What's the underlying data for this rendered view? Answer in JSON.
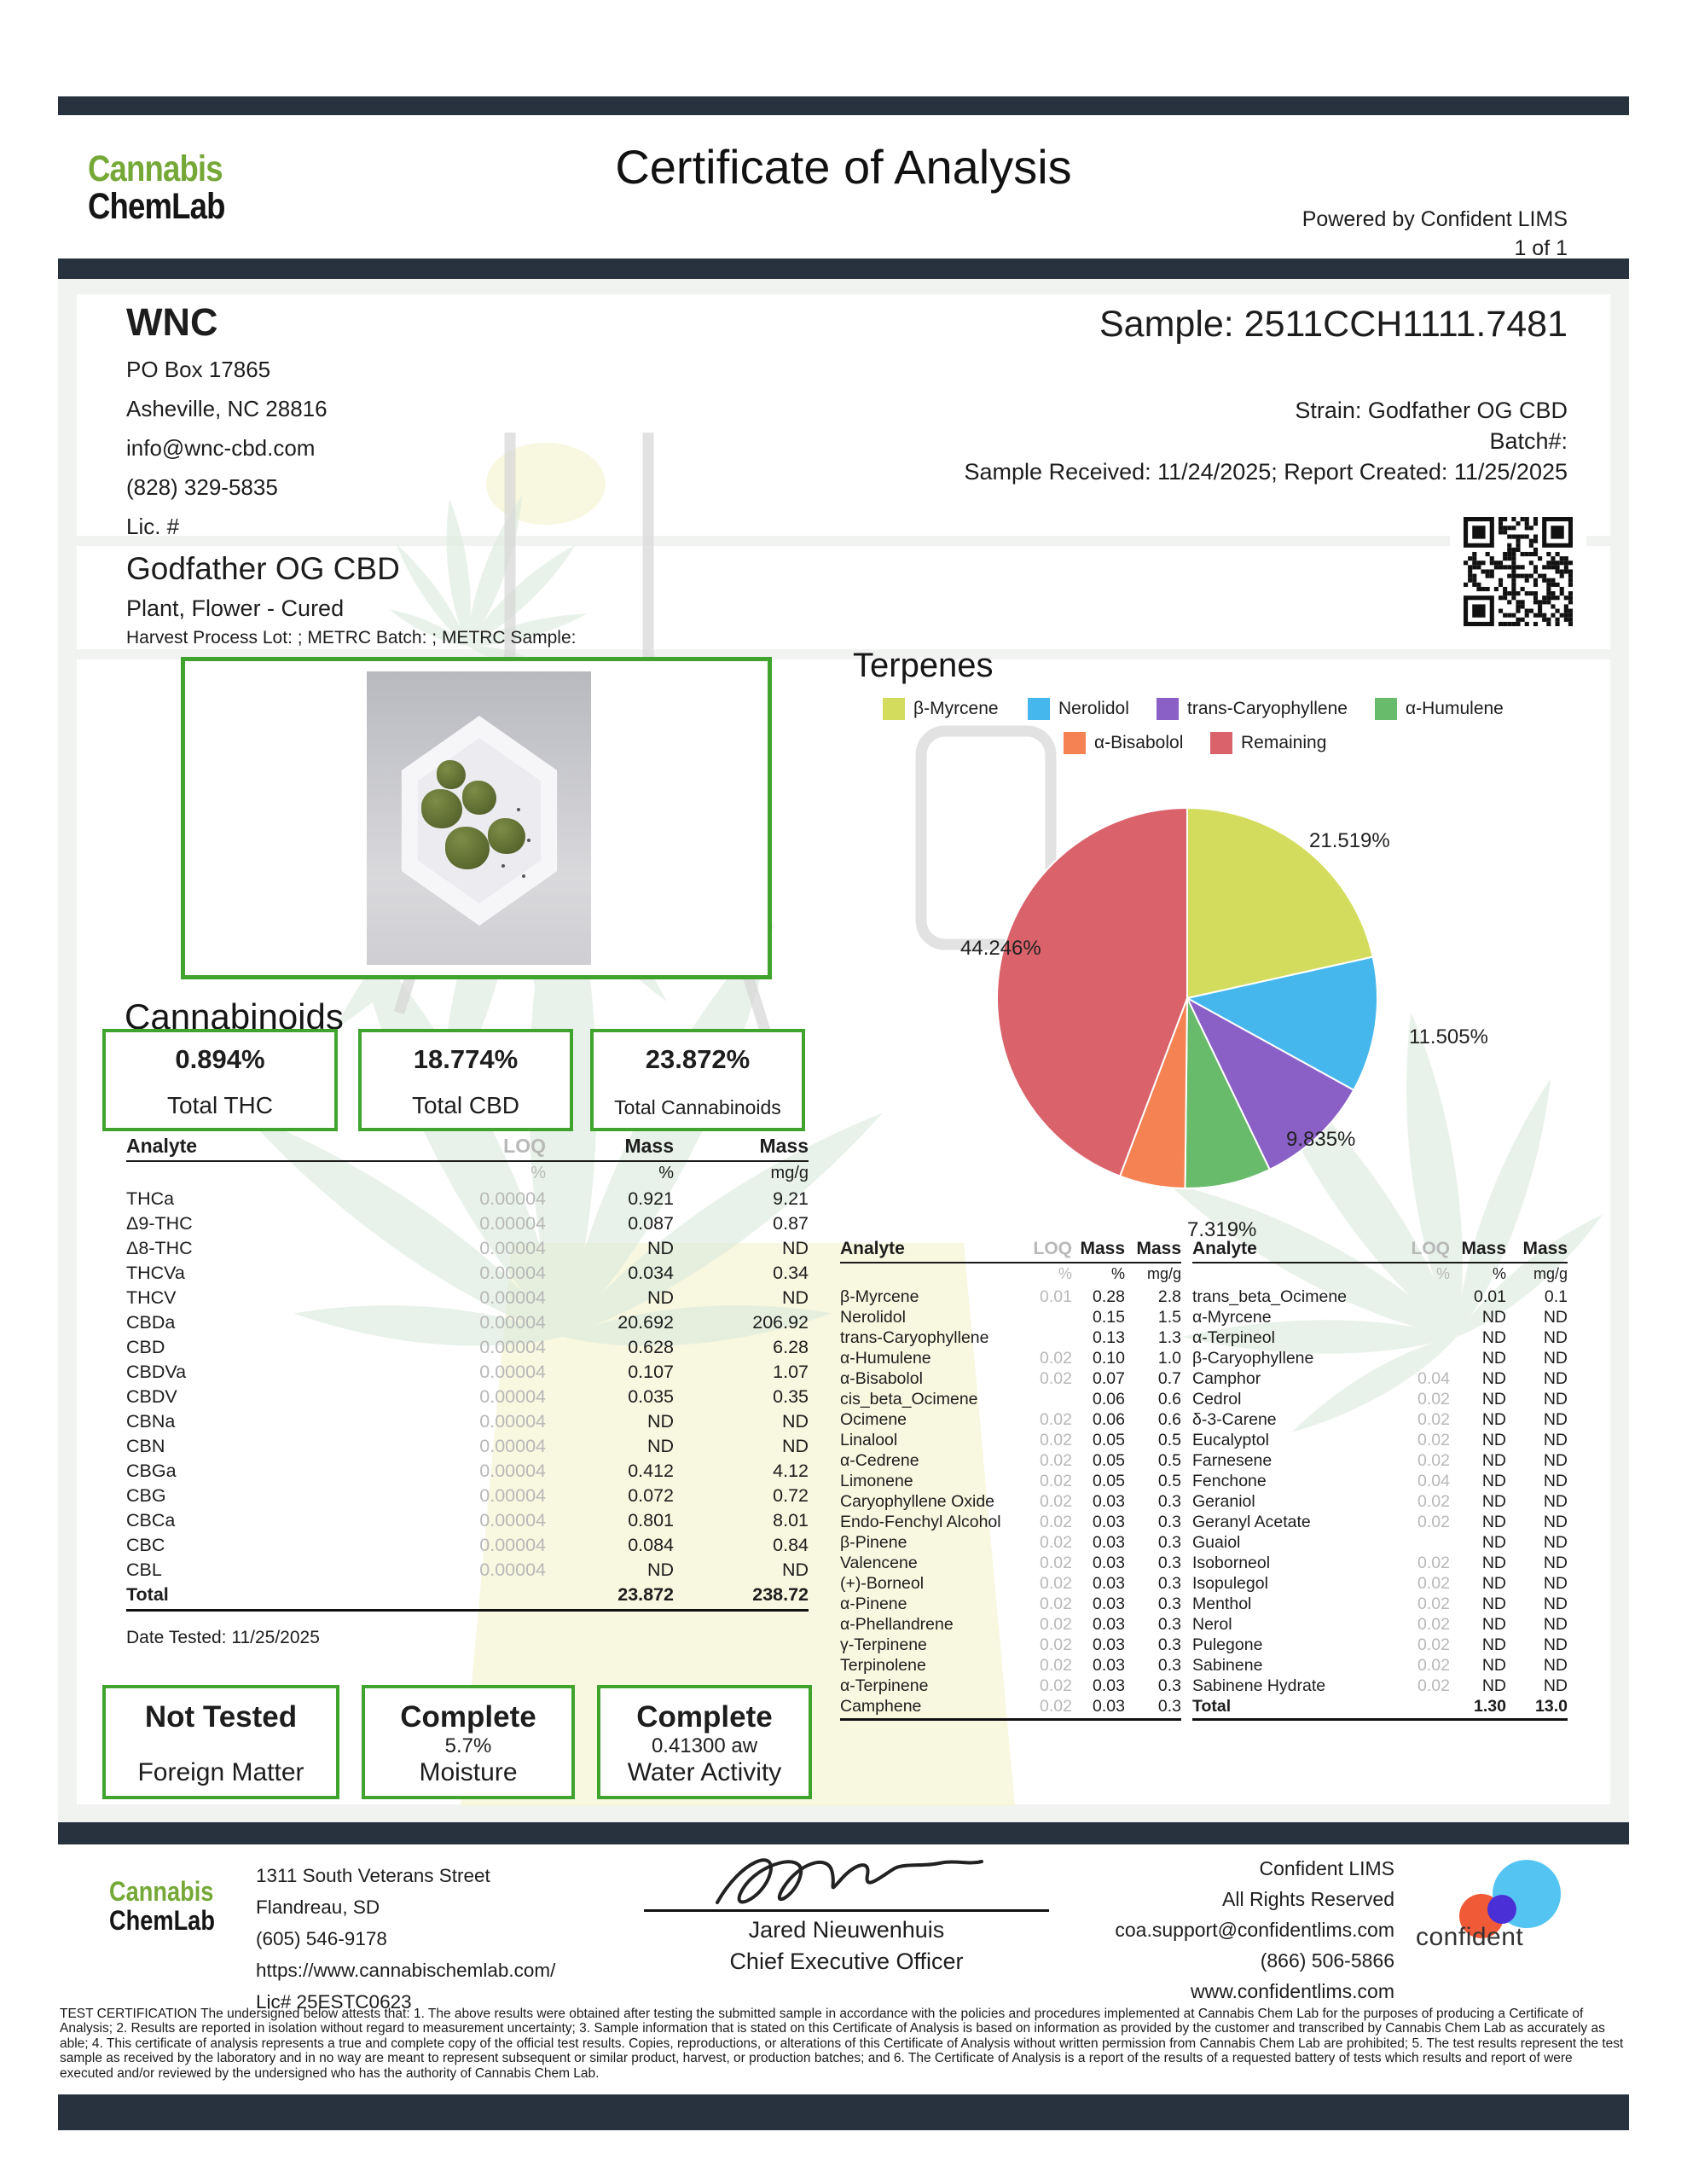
{
  "header": {
    "brand_top": "Cannabis",
    "brand_bottom": "ChemLab",
    "title": "Certificate of Analysis",
    "powered_by": "Powered by Confident LIMS",
    "page_num": "1 of 1"
  },
  "client": {
    "name": "WNC",
    "address1": "PO Box 17865",
    "address2": "Asheville, NC 28816",
    "email": "info@wnc-cbd.com",
    "phone": "(828) 329-5835",
    "license": "Lic. #"
  },
  "sample": {
    "heading": "Sample: 2511CCH1111.7481",
    "strain": "Strain: Godfather OG CBD",
    "batch": "Batch#:",
    "received": "Sample Received: 11/24/2025; Report Created: 11/25/2025"
  },
  "product": {
    "name": "Godfather OG CBD",
    "type": "Plant, Flower - Cured",
    "metrc": "Harvest Process Lot: ; METRC Batch: ; METRC Sample:"
  },
  "cannabinoids": {
    "heading": "Cannabinoids",
    "summary": [
      {
        "value": "0.894%",
        "label": "Total THC"
      },
      {
        "value": "18.774%",
        "label": "Total CBD"
      },
      {
        "value": "23.872%",
        "label": "Total Cannabinoids"
      }
    ],
    "columns": {
      "analyte": "Analyte",
      "loq": "LOQ",
      "mass1": "Mass",
      "mass2": "Mass"
    },
    "units": {
      "loq": "%",
      "mass1": "%",
      "mass2": "mg/g"
    },
    "rows": [
      {
        "analyte": "THCa",
        "loq": "0.00004",
        "pct": "0.921",
        "mgg": "9.21"
      },
      {
        "analyte": "Δ9-THC",
        "loq": "0.00004",
        "pct": "0.087",
        "mgg": "0.87"
      },
      {
        "analyte": "Δ8-THC",
        "loq": "0.00004",
        "pct": "ND",
        "mgg": "ND"
      },
      {
        "analyte": "THCVa",
        "loq": "0.00004",
        "pct": "0.034",
        "mgg": "0.34"
      },
      {
        "analyte": "THCV",
        "loq": "0.00004",
        "pct": "ND",
        "mgg": "ND"
      },
      {
        "analyte": "CBDa",
        "loq": "0.00004",
        "pct": "20.692",
        "mgg": "206.92"
      },
      {
        "analyte": "CBD",
        "loq": "0.00004",
        "pct": "0.628",
        "mgg": "6.28"
      },
      {
        "analyte": "CBDVa",
        "loq": "0.00004",
        "pct": "0.107",
        "mgg": "1.07"
      },
      {
        "analyte": "CBDV",
        "loq": "0.00004",
        "pct": "0.035",
        "mgg": "0.35"
      },
      {
        "analyte": "CBNa",
        "loq": "0.00004",
        "pct": "ND",
        "mgg": "ND"
      },
      {
        "analyte": "CBN",
        "loq": "0.00004",
        "pct": "ND",
        "mgg": "ND"
      },
      {
        "analyte": "CBGa",
        "loq": "0.00004",
        "pct": "0.412",
        "mgg": "4.12"
      },
      {
        "analyte": "CBG",
        "loq": "0.00004",
        "pct": "0.072",
        "mgg": "0.72"
      },
      {
        "analyte": "CBCa",
        "loq": "0.00004",
        "pct": "0.801",
        "mgg": "8.01"
      },
      {
        "analyte": "CBC",
        "loq": "0.00004",
        "pct": "0.084",
        "mgg": "0.84"
      },
      {
        "analyte": "CBL",
        "loq": "0.00004",
        "pct": "ND",
        "mgg": "ND"
      }
    ],
    "total": {
      "analyte": "Total",
      "loq": "",
      "pct": "23.872",
      "mgg": "238.72"
    },
    "date_tested": "Date Tested: 11/25/2025"
  },
  "status_boxes": [
    {
      "status": "Not Tested",
      "value": "",
      "label": "Foreign Matter"
    },
    {
      "status": "Complete",
      "value": "5.7%",
      "label": "Moisture"
    },
    {
      "status": "Complete",
      "value": "0.41300 aw",
      "label": "Water Activity"
    }
  ],
  "terpenes": {
    "heading": "Terpenes",
    "legend": [
      {
        "label": "β-Myrcene",
        "color": "#d3dc5d"
      },
      {
        "label": "Nerolidol",
        "color": "#45b7ec"
      },
      {
        "label": "trans-Caryophyllene",
        "color": "#8a60c7"
      },
      {
        "label": "α-Humulene",
        "color": "#68bb6a"
      },
      {
        "label": "α-Bisabolol",
        "color": "#f58253"
      },
      {
        "label": "Remaining",
        "color": "#d9626b"
      }
    ],
    "pie_labels": [
      "21.519%",
      "11.505%",
      "9.835%",
      "7.319%",
      "44.246%"
    ],
    "columns": {
      "analyte": "Analyte",
      "loq": "LOQ",
      "mass1": "Mass",
      "mass2": "Mass"
    },
    "units": {
      "loq": "%",
      "mass1": "%",
      "mass2": "mg/g"
    },
    "left_rows": [
      {
        "analyte": "β-Myrcene",
        "loq": "0.01",
        "pct": "0.28",
        "mgg": "2.8"
      },
      {
        "analyte": "Nerolidol",
        "loq": "",
        "pct": "0.15",
        "mgg": "1.5"
      },
      {
        "analyte": "trans-Caryophyllene",
        "loq": "",
        "pct": "0.13",
        "mgg": "1.3"
      },
      {
        "analyte": "α-Humulene",
        "loq": "0.02",
        "pct": "0.10",
        "mgg": "1.0"
      },
      {
        "analyte": "α-Bisabolol",
        "loq": "0.02",
        "pct": "0.07",
        "mgg": "0.7"
      },
      {
        "analyte": "cis_beta_Ocimene",
        "loq": "",
        "pct": "0.06",
        "mgg": "0.6"
      },
      {
        "analyte": "Ocimene",
        "loq": "0.02",
        "pct": "0.06",
        "mgg": "0.6"
      },
      {
        "analyte": "Linalool",
        "loq": "0.02",
        "pct": "0.05",
        "mgg": "0.5"
      },
      {
        "analyte": "α-Cedrene",
        "loq": "0.02",
        "pct": "0.05",
        "mgg": "0.5"
      },
      {
        "analyte": "Limonene",
        "loq": "0.02",
        "pct": "0.05",
        "mgg": "0.5"
      },
      {
        "analyte": "Caryophyllene Oxide",
        "loq": "0.02",
        "pct": "0.03",
        "mgg": "0.3"
      },
      {
        "analyte": "Endo-Fenchyl Alcohol",
        "loq": "0.02",
        "pct": "0.03",
        "mgg": "0.3"
      },
      {
        "analyte": "β-Pinene",
        "loq": "0.02",
        "pct": "0.03",
        "mgg": "0.3"
      },
      {
        "analyte": "Valencene",
        "loq": "0.02",
        "pct": "0.03",
        "mgg": "0.3"
      },
      {
        "analyte": "(+)-Borneol",
        "loq": "0.02",
        "pct": "0.03",
        "mgg": "0.3"
      },
      {
        "analyte": "α-Pinene",
        "loq": "0.02",
        "pct": "0.03",
        "mgg": "0.3"
      },
      {
        "analyte": "α-Phellandrene",
        "loq": "0.02",
        "pct": "0.03",
        "mgg": "0.3"
      },
      {
        "analyte": "γ-Terpinene",
        "loq": "0.02",
        "pct": "0.03",
        "mgg": "0.3"
      },
      {
        "analyte": "Terpinolene",
        "loq": "0.02",
        "pct": "0.03",
        "mgg": "0.3"
      },
      {
        "analyte": "α-Terpinene",
        "loq": "0.02",
        "pct": "0.03",
        "mgg": "0.3"
      },
      {
        "analyte": "Camphene",
        "loq": "0.02",
        "pct": "0.03",
        "mgg": "0.3"
      }
    ],
    "right_rows": [
      {
        "analyte": "trans_beta_Ocimene",
        "loq": "",
        "pct": "0.01",
        "mgg": "0.1"
      },
      {
        "analyte": "α-Myrcene",
        "loq": "",
        "pct": "ND",
        "mgg": "ND"
      },
      {
        "analyte": "α-Terpineol",
        "loq": "",
        "pct": "ND",
        "mgg": "ND"
      },
      {
        "analyte": "β-Caryophyllene",
        "loq": "",
        "pct": "ND",
        "mgg": "ND"
      },
      {
        "analyte": "Camphor",
        "loq": "0.04",
        "pct": "ND",
        "mgg": "ND"
      },
      {
        "analyte": "Cedrol",
        "loq": "0.02",
        "pct": "ND",
        "mgg": "ND"
      },
      {
        "analyte": "δ-3-Carene",
        "loq": "0.02",
        "pct": "ND",
        "mgg": "ND"
      },
      {
        "analyte": "Eucalyptol",
        "loq": "0.02",
        "pct": "ND",
        "mgg": "ND"
      },
      {
        "analyte": "Farnesene",
        "loq": "0.02",
        "pct": "ND",
        "mgg": "ND"
      },
      {
        "analyte": "Fenchone",
        "loq": "0.04",
        "pct": "ND",
        "mgg": "ND"
      },
      {
        "analyte": "Geraniol",
        "loq": "0.02",
        "pct": "ND",
        "mgg": "ND"
      },
      {
        "analyte": "Geranyl Acetate",
        "loq": "0.02",
        "pct": "ND",
        "mgg": "ND"
      },
      {
        "analyte": "Guaiol",
        "loq": "",
        "pct": "ND",
        "mgg": "ND"
      },
      {
        "analyte": "Isoborneol",
        "loq": "0.02",
        "pct": "ND",
        "mgg": "ND"
      },
      {
        "analyte": "Isopulegol",
        "loq": "0.02",
        "pct": "ND",
        "mgg": "ND"
      },
      {
        "analyte": "Menthol",
        "loq": "0.02",
        "pct": "ND",
        "mgg": "ND"
      },
      {
        "analyte": "Nerol",
        "loq": "0.02",
        "pct": "ND",
        "mgg": "ND"
      },
      {
        "analyte": "Pulegone",
        "loq": "0.02",
        "pct": "ND",
        "mgg": "ND"
      },
      {
        "analyte": "Sabinene",
        "loq": "0.02",
        "pct": "ND",
        "mgg": "ND"
      },
      {
        "analyte": "Sabinene Hydrate",
        "loq": "0.02",
        "pct": "ND",
        "mgg": "ND"
      }
    ],
    "right_total": {
      "analyte": "Total",
      "loq": "",
      "pct": "1.30",
      "mgg": "13.0"
    }
  },
  "chart_data": {
    "type": "pie",
    "title": "Terpenes",
    "labels": [
      "β-Myrcene",
      "Nerolidol",
      "trans-Caryophyllene",
      "α-Humulene",
      "α-Bisabolol",
      "Remaining"
    ],
    "values": [
      21.519,
      11.505,
      9.835,
      7.319,
      5.576,
      44.246
    ],
    "colors": [
      "#d3dc5d",
      "#45b7ec",
      "#8a60c7",
      "#68bb6a",
      "#f58253",
      "#d9626b"
    ],
    "annotations": [
      "21.519%",
      "11.505%",
      "9.835%",
      "7.319%",
      "",
      "44.246%"
    ],
    "legend_position": "top",
    "start_angle_deg": 0,
    "direction": "clockwise"
  },
  "footer": {
    "brand_top": "Cannabis",
    "brand_bottom": "ChemLab",
    "lab": {
      "address1": "1311 South Veterans Street",
      "address2": "Flandreau, SD",
      "phone": "(605) 546-9178",
      "website": "https://www.cannabischemlab.com/",
      "license": "Lic# 25ESTC0623"
    },
    "signer": {
      "name": "Jared Nieuwenhuis",
      "title": "Chief Executive Officer"
    },
    "confident": {
      "line1": "Confident LIMS",
      "line2": "All Rights Reserved",
      "line3": "coa.support@confidentlims.com",
      "line4": "(866) 506-5866",
      "line5": "www.confidentlims.com",
      "logo_text": "confident"
    },
    "certification": "TEST CERTIFICATION The undersigned below attests that: 1. The above results were obtained after testing the submitted sample in accordance with the policies and procedures implemented at Cannabis Chem Lab for the purposes of producing a Certificate of Analysis; 2. Results are reported in isolation without regard to measurement uncertainty; 3. Sample information that is stated on this Certificate of Analysis is based on information as provided by the customer and transcribed by Cannabis Chem Lab as accurately as able; 4. This certificate of analysis represents a true and complete copy of the official test results. Copies, reproductions, or alterations of this Certificate of Analysis without written permission from Cannabis Chem Lab are prohibited; 5. The test results represent the test sample as received by the laboratory and in no way are meant to represent subsequent or similar product, harvest, or production batches; and 6. The Certificate of Analysis is a report of the results of a requested battery of tests which results and report of were executed and/or reviewed by the undersigned who has the authority of Cannabis Chem Lab."
  }
}
